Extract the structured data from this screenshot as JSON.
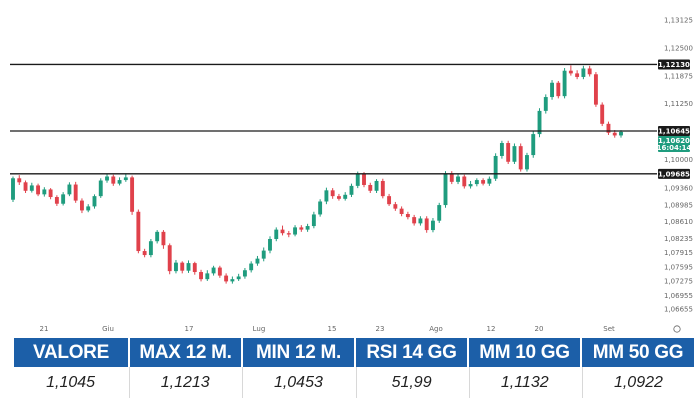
{
  "chart_data": {
    "type": "candlestick",
    "y_ticks": [
      "1,13125",
      "1,12500",
      "1,11875",
      "1,11250",
      "1,10000",
      "1,09360",
      "1,08985",
      "1,08610",
      "1,08235",
      "1,07915",
      "1,07595",
      "1,07275",
      "1,06955",
      "1,06655"
    ],
    "x_ticks": [
      "21",
      "Giu",
      "17",
      "Lug",
      "15",
      "23",
      "Ago",
      "12",
      "20",
      "Set"
    ],
    "ylim": [
      1.0645,
      1.1335
    ],
    "colors": {
      "up": "#1f9c7e",
      "down": "#e0414b",
      "line": "#1a1a1a",
      "tag_bg": "#1a1a1a",
      "tag_fg": "#ffffff",
      "current_bg": "#1f9c7e"
    },
    "levels": [
      {
        "value": 1.1213,
        "label": "1,12130"
      },
      {
        "value": 1.1064,
        "label": "1,10645"
      },
      {
        "value": 1.0968,
        "label": "1,09685"
      }
    ],
    "current": {
      "price_label": "1,10620",
      "time_label": "16:04:14"
    },
    "candles": [
      [
        1.091,
        1.0958,
        1.0962,
        1.0905
      ],
      [
        1.0958,
        1.0949,
        1.0965,
        1.0943
      ],
      [
        1.0949,
        1.093,
        1.0953,
        1.0925
      ],
      [
        1.093,
        1.0942,
        1.0948,
        1.0926
      ],
      [
        1.0942,
        1.0922,
        1.0946,
        1.0918
      ],
      [
        1.0922,
        1.0933,
        1.0938,
        1.0917
      ],
      [
        1.0933,
        1.0916,
        1.0936,
        1.0911
      ],
      [
        1.0916,
        1.0901,
        1.092,
        1.0896
      ],
      [
        1.0901,
        1.0922,
        1.0927,
        1.0897
      ],
      [
        1.0922,
        1.0944,
        1.0949,
        1.0918
      ],
      [
        1.0944,
        1.0908,
        1.095,
        1.0903
      ],
      [
        1.0908,
        1.0886,
        1.0913,
        1.088
      ],
      [
        1.0886,
        1.0895,
        1.09,
        1.0882
      ],
      [
        1.0895,
        1.0918,
        1.0922,
        1.089
      ],
      [
        1.0918,
        1.0953,
        1.0958,
        1.0914
      ],
      [
        1.0953,
        1.0962,
        1.0967,
        1.0948
      ],
      [
        1.0962,
        1.0946,
        1.0966,
        1.0941
      ],
      [
        1.0946,
        1.0954,
        1.096,
        1.0942
      ],
      [
        1.0954,
        1.096,
        1.0969,
        1.095
      ],
      [
        1.096,
        1.0883,
        1.0964,
        1.0876
      ],
      [
        1.0883,
        1.0795,
        1.0888,
        1.079
      ],
      [
        1.0795,
        1.0786,
        1.08,
        1.0781
      ],
      [
        1.0786,
        1.0817,
        1.0822,
        1.0781
      ],
      [
        1.0817,
        1.0838,
        1.0842,
        1.0812
      ],
      [
        1.0838,
        1.0808,
        1.0842,
        1.08
      ],
      [
        1.0808,
        1.075,
        1.0812,
        1.0743
      ],
      [
        1.075,
        1.0769,
        1.0775,
        1.0745
      ],
      [
        1.0769,
        1.0751,
        1.0772,
        1.0745
      ],
      [
        1.0751,
        1.0768,
        1.0774,
        1.0746
      ],
      [
        1.0768,
        1.0748,
        1.0771,
        1.0742
      ],
      [
        1.0748,
        1.0732,
        1.0753,
        1.0727
      ],
      [
        1.0732,
        1.0745,
        1.0752,
        1.0728
      ],
      [
        1.0745,
        1.0758,
        1.0762,
        1.074
      ],
      [
        1.0758,
        1.074,
        1.0762,
        1.0735
      ],
      [
        1.074,
        1.0727,
        1.0745,
        1.0722
      ],
      [
        1.0727,
        1.0732,
        1.0738,
        1.0722
      ],
      [
        1.0732,
        1.0738,
        1.0744,
        1.0728
      ],
      [
        1.0738,
        1.0752,
        1.0757,
        1.0733
      ],
      [
        1.0752,
        1.0767,
        1.0772,
        1.0747
      ],
      [
        1.0767,
        1.0778,
        1.0784,
        1.0762
      ],
      [
        1.0778,
        1.0796,
        1.0803,
        1.0772
      ],
      [
        1.0796,
        1.0822,
        1.0828,
        1.079
      ],
      [
        1.0822,
        1.0843,
        1.0848,
        1.0817
      ],
      [
        1.0843,
        1.0835,
        1.0852,
        1.083
      ],
      [
        1.0835,
        1.0832,
        1.084,
        1.0826
      ],
      [
        1.0832,
        1.0848,
        1.0853,
        1.0828
      ],
      [
        1.0848,
        1.0843,
        1.0853,
        1.0838
      ],
      [
        1.0843,
        1.0851,
        1.0856,
        1.0838
      ],
      [
        1.0851,
        1.0877,
        1.0883,
        1.0846
      ],
      [
        1.0877,
        1.0906,
        1.0911,
        1.0872
      ],
      [
        1.0906,
        1.0931,
        1.0937,
        1.09
      ],
      [
        1.0931,
        1.0918,
        1.0936,
        1.0912
      ],
      [
        1.0918,
        1.0912,
        1.0923,
        1.0908
      ],
      [
        1.0912,
        1.0921,
        1.0927,
        1.0908
      ],
      [
        1.0921,
        1.0941,
        1.0946,
        1.0916
      ],
      [
        1.0941,
        1.0967,
        1.0973,
        1.0936
      ],
      [
        1.0967,
        1.0943,
        1.0972,
        1.0938
      ],
      [
        1.0943,
        1.093,
        1.0948,
        1.0925
      ],
      [
        1.093,
        1.0952,
        1.0956,
        1.0925
      ],
      [
        1.0952,
        1.0918,
        1.0957,
        1.0913
      ],
      [
        1.0918,
        1.09,
        1.0923,
        1.0896
      ],
      [
        1.09,
        1.089,
        1.0905,
        1.0885
      ],
      [
        1.089,
        1.0878,
        1.0895,
        1.0873
      ],
      [
        1.0878,
        1.0871,
        1.0883,
        1.0866
      ],
      [
        1.0871,
        1.0857,
        1.0876,
        1.0852
      ],
      [
        1.0857,
        1.0868,
        1.0873,
        1.0852
      ],
      [
        1.0868,
        1.0842,
        1.0873,
        1.0836
      ],
      [
        1.0842,
        1.0863,
        1.0869,
        1.0837
      ],
      [
        1.0863,
        1.0898,
        1.0903,
        1.0858
      ],
      [
        1.0898,
        1.0969,
        1.0974,
        1.0892
      ],
      [
        1.0969,
        1.095,
        1.0974,
        1.0945
      ],
      [
        1.095,
        1.0962,
        1.0967,
        1.0945
      ],
      [
        1.0962,
        1.094,
        1.0966,
        1.0935
      ],
      [
        1.094,
        1.0945,
        1.0952,
        1.0935
      ],
      [
        1.0945,
        1.0954,
        1.0958,
        1.094
      ],
      [
        1.0954,
        1.0946,
        1.0958,
        1.0942
      ],
      [
        1.0946,
        1.0957,
        1.0962,
        1.0941
      ],
      [
        1.0957,
        1.1008,
        1.1014,
        1.0952
      ],
      [
        1.1008,
        1.1037,
        1.1042,
        1.1002
      ],
      [
        1.1037,
        1.0995,
        1.1042,
        1.099
      ],
      [
        1.0995,
        1.103,
        1.1036,
        1.099
      ],
      [
        1.103,
        1.0978,
        1.1036,
        1.0973
      ],
      [
        1.0978,
        1.101,
        1.1015,
        1.0973
      ],
      [
        1.101,
        1.1057,
        1.1063,
        1.1004
      ],
      [
        1.1057,
        1.1109,
        1.1115,
        1.105
      ],
      [
        1.1109,
        1.114,
        1.1146,
        1.1103
      ],
      [
        1.114,
        1.1172,
        1.1178,
        1.1134
      ],
      [
        1.1172,
        1.1142,
        1.1176,
        1.1137
      ],
      [
        1.1142,
        1.1199,
        1.1205,
        1.1137
      ],
      [
        1.1199,
        1.1193,
        1.1211,
        1.1188
      ],
      [
        1.1193,
        1.1185,
        1.12,
        1.118
      ],
      [
        1.1185,
        1.1204,
        1.121,
        1.118
      ],
      [
        1.1204,
        1.1191,
        1.121,
        1.1186
      ],
      [
        1.1191,
        1.1123,
        1.1196,
        1.1118
      ],
      [
        1.1123,
        1.108,
        1.1128,
        1.1075
      ],
      [
        1.108,
        1.106,
        1.1085,
        1.1055
      ],
      [
        1.106,
        1.1054,
        1.1066,
        1.1049
      ],
      [
        1.1054,
        1.1062,
        1.1066,
        1.1049
      ]
    ]
  },
  "stats": {
    "headers": [
      "VALORE",
      "MAX 12 M.",
      "MIN 12 M.",
      "RSI 14 GG",
      "MM 10 GG",
      "MM 50 GG"
    ],
    "values": [
      "1,1045",
      "1,1213",
      "1,0453",
      "51,99",
      "1,1132",
      "1,0922"
    ]
  }
}
